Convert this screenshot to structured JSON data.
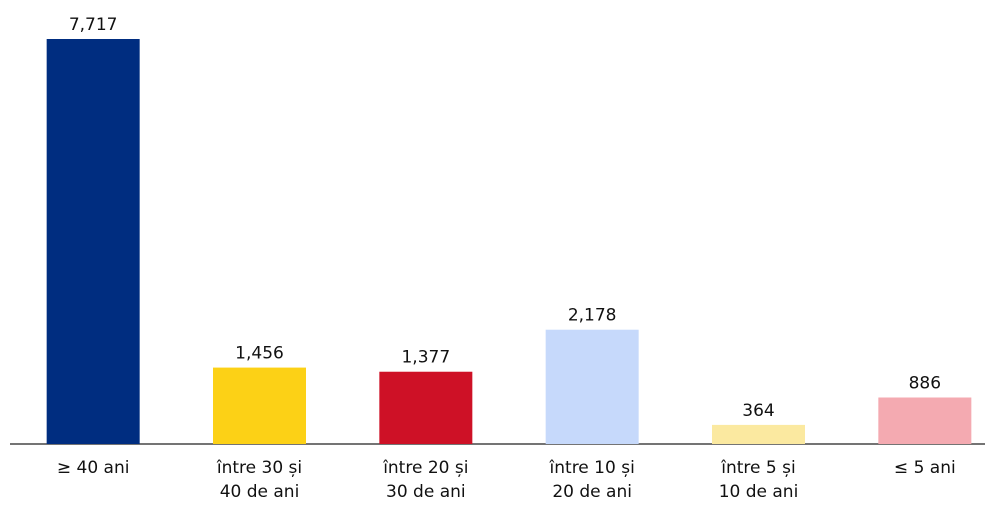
{
  "chart_data": {
    "type": "bar",
    "categories": [
      [
        "≥ 40 ani"
      ],
      [
        "între 30 și",
        "40 de ani"
      ],
      [
        "între 20 și",
        "30 de ani"
      ],
      [
        "între 10 și",
        "20 de ani"
      ],
      [
        "între 5 și",
        "10 de ani"
      ],
      [
        "≤ 5 ani"
      ]
    ],
    "values": [
      7717,
      1456,
      1377,
      2178,
      364,
      886
    ],
    "value_labels": [
      "7,717",
      "1,456",
      "1,377",
      "2,178",
      "364",
      "886"
    ],
    "colors": [
      "#002d80",
      "#fcd116",
      "#ce1126",
      "#c6d9fb",
      "#fbe9a0",
      "#f4aab1"
    ]
  }
}
